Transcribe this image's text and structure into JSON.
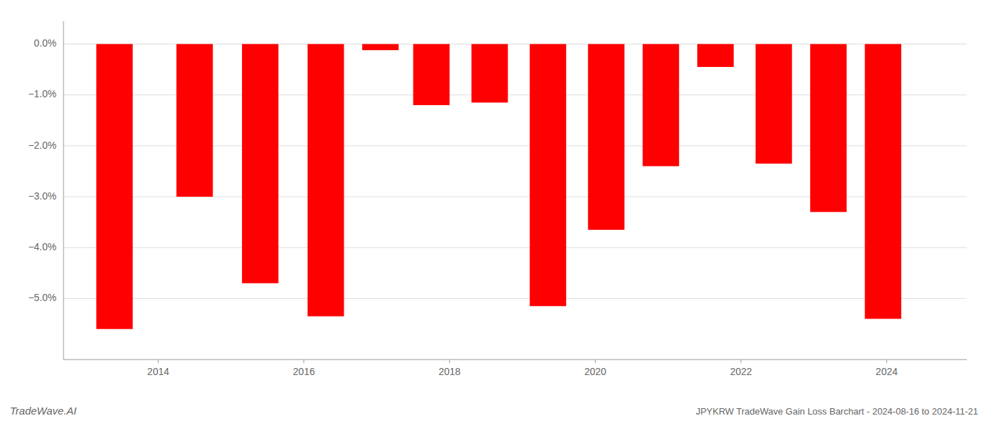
{
  "chart_data": {
    "type": "bar",
    "title": "JPYKRW TradeWave Gain Loss Barchart - 2024-08-16 to 2024-11-21",
    "annotations": [
      "TradeWave.AI"
    ],
    "x": [
      2013.4,
      2014.5,
      2015.4,
      2016.3,
      2017.05,
      2017.75,
      2018.55,
      2019.35,
      2020.15,
      2020.9,
      2021.65,
      2022.45,
      2023.2,
      2023.95
    ],
    "values": [
      -5.6,
      -3.0,
      -4.7,
      -5.35,
      -0.12,
      -1.2,
      -1.15,
      -5.15,
      -3.65,
      -2.4,
      -0.45,
      -2.35,
      -3.3,
      -5.4
    ],
    "color": "#ff0000",
    "ylim": [
      -6.2,
      0.45
    ],
    "yticks": [
      {
        "value": 0.0,
        "label": "0.0%"
      },
      {
        "value": -1.0,
        "label": "−1.0%"
      },
      {
        "value": -2.0,
        "label": "−2.0%"
      },
      {
        "value": -3.0,
        "label": "−3.0%"
      },
      {
        "value": -4.0,
        "label": "−4.0%"
      },
      {
        "value": -5.0,
        "label": "−5.0%"
      }
    ],
    "xlim": [
      2012.7,
      2025.1
    ],
    "xticks": [
      2014,
      2016,
      2018,
      2020,
      2022,
      2024
    ],
    "grid": true
  }
}
